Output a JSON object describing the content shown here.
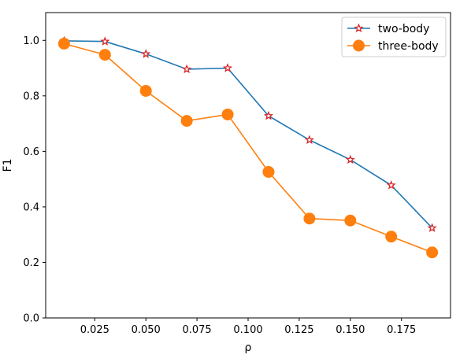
{
  "chart_data": {
    "type": "line",
    "xlabel": "ρ",
    "ylabel": "F1",
    "xlim": [
      0.001,
      0.199
    ],
    "ylim": [
      0.0,
      1.1
    ],
    "xticks": [
      "0.025",
      "0.050",
      "0.075",
      "0.100",
      "0.125",
      "0.150",
      "0.175"
    ],
    "yticks": [
      "0.0",
      "0.2",
      "0.4",
      "0.6",
      "0.8",
      "1.0"
    ],
    "grid": false,
    "legend": "top-right",
    "x": [
      0.01,
      0.03,
      0.05,
      0.07,
      0.09,
      0.11,
      0.13,
      0.15,
      0.17,
      0.19
    ],
    "series": [
      {
        "name": "two-body",
        "values": [
          0.998,
          0.996,
          0.951,
          0.896,
          0.9,
          0.728,
          0.641,
          0.57,
          0.478,
          0.324
        ],
        "color": "#1f77b4",
        "marker": "star",
        "marker_edge_color": "#d62728"
      },
      {
        "name": "three-body",
        "values": [
          0.988,
          0.948,
          0.818,
          0.71,
          0.733,
          0.526,
          0.358,
          0.351,
          0.293,
          0.236
        ],
        "color": "#ff7f0e",
        "marker": "circle",
        "marker_edge_color": "#ff7f0e"
      }
    ]
  }
}
